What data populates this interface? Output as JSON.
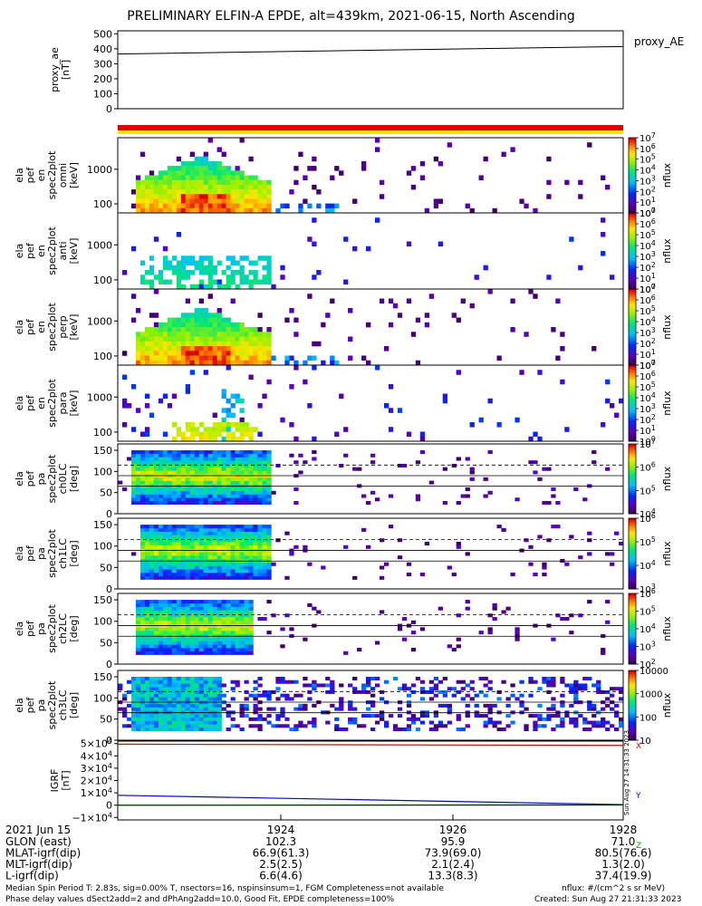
{
  "title": "PRELIMINARY ELFIN-A EPDE, alt=439km, 2021-06-15, North Ascending",
  "colors": {
    "red_bar": "#e00000",
    "yellow_bar": "#ffe000",
    "bx": "#e00000",
    "by": "#00a000",
    "bz": "#0000e0"
  },
  "chart_data": [
    {
      "type": "line",
      "panel": "proxy_ae",
      "ylabel": [
        "proxy_ae",
        "[nT]"
      ],
      "legend": "proxy_AE",
      "yticks": [
        "500",
        "400",
        "300",
        "200",
        "100",
        "0"
      ],
      "ylim": [
        0,
        520
      ],
      "series": [
        {
          "x": [
            0,
            1
          ],
          "values": [
            365,
            415
          ]
        }
      ]
    },
    {
      "type": "heatmap",
      "panel": "en-omni",
      "ylabel": [
        "ela",
        "pef",
        "en",
        "spec2plot",
        "omni",
        "[keV]"
      ],
      "yticks": [
        "1000",
        "100"
      ],
      "colorbar": {
        "label": "nflux",
        "ticks": [
          "10^7",
          "10^6",
          "10^5",
          "10^4",
          "10^3",
          "10^2",
          "10^1",
          "10^0"
        ]
      }
    },
    {
      "type": "heatmap",
      "panel": "en-anti",
      "ylabel": [
        "ela",
        "pef",
        "en",
        "spec2plot",
        "anti",
        "[keV]"
      ],
      "yticks": [
        "1000",
        "100"
      ],
      "colorbar": {
        "label": "nflux",
        "ticks": [
          "10^7",
          "10^6",
          "10^5",
          "10^4",
          "10^3",
          "10^2",
          "10^1",
          "10^0"
        ]
      }
    },
    {
      "type": "heatmap",
      "panel": "en-perp",
      "ylabel": [
        "ela",
        "pef",
        "en",
        "spec2plot",
        "perp",
        "[keV]"
      ],
      "yticks": [
        "1000",
        "100"
      ],
      "colorbar": {
        "label": "nflux",
        "ticks": [
          "10^7",
          "10^6",
          "10^5",
          "10^4",
          "10^3",
          "10^2",
          "10^1",
          "10^0"
        ]
      }
    },
    {
      "type": "heatmap",
      "panel": "en-para",
      "ylabel": [
        "ela",
        "pef",
        "en",
        "spec2plot",
        "para",
        "[keV]"
      ],
      "yticks": [
        "1000",
        "100"
      ],
      "colorbar": {
        "label": "nflux",
        "ticks": [
          "10^7",
          "10^6",
          "10^5",
          "10^4",
          "10^3",
          "10^2",
          "10^1",
          "10^0"
        ]
      }
    },
    {
      "type": "heatmap",
      "panel": "pa-ch0",
      "ylabel": [
        "ela",
        "pef",
        "pa",
        "spec2plot",
        "ch0LC",
        "[deg]"
      ],
      "yticks": [
        "150",
        "100",
        "50",
        "0"
      ],
      "colorbar": {
        "label": "nflux",
        "ticks": [
          "10^7",
          "10^6",
          "10^5",
          "10^4"
        ]
      }
    },
    {
      "type": "heatmap",
      "panel": "pa-ch1",
      "ylabel": [
        "ela",
        "pef",
        "pa",
        "spec2plot",
        "ch1LC",
        "[deg]"
      ],
      "yticks": [
        "150",
        "100",
        "50",
        "0"
      ],
      "colorbar": {
        "label": "nflux",
        "ticks": [
          "10^6",
          "10^5",
          "10^4",
          "10^3"
        ]
      }
    },
    {
      "type": "heatmap",
      "panel": "pa-ch2",
      "ylabel": [
        "ela",
        "pef",
        "pa",
        "spec2plot",
        "ch2LC",
        "[deg]"
      ],
      "yticks": [
        "150",
        "100",
        "50",
        "0"
      ],
      "colorbar": {
        "label": "nflux",
        "ticks": [
          "10^6",
          "10^5",
          "10^4",
          "10^3",
          "10^2"
        ]
      }
    },
    {
      "type": "heatmap",
      "panel": "pa-ch3",
      "ylabel": [
        "ela",
        "pef",
        "pa",
        "spec2plot",
        "ch3LC",
        "[deg]"
      ],
      "yticks": [
        "150",
        "100",
        "50",
        "0"
      ],
      "colorbar": {
        "label": "nflux",
        "ticks": [
          "10000",
          "1000",
          "100",
          "10"
        ]
      }
    },
    {
      "type": "line",
      "panel": "igrf",
      "ylabel": [
        "IGRF",
        "[nT]"
      ],
      "yticks": [
        "5×10^4",
        "4×10^4",
        "3×10^4",
        "2×10^4",
        "1×10^4",
        "0",
        "−1×10^4"
      ],
      "ylim": [
        -12000,
        52000
      ],
      "side_labels": [
        "X",
        "Y",
        "Z"
      ],
      "series": [
        {
          "x": [
            0,
            1
          ],
          "values": [
            49500,
            48500
          ]
        },
        {
          "x": [
            0,
            1
          ],
          "values": [
            8000,
            500
          ]
        },
        {
          "x": [
            0,
            1
          ],
          "values": [
            -200,
            300
          ]
        }
      ]
    }
  ],
  "xaxis": {
    "date": "2021 Jun 15",
    "ticks": [
      "1924",
      "1926",
      "1928"
    ],
    "rows": [
      {
        "label": "GLON (east)",
        "values": [
          "102.3",
          "95.9",
          "71.0"
        ]
      },
      {
        "label": "MLAT-igrf(dip)",
        "values": [
          "66.9(61.3)",
          "73.9(69.0)",
          "80.5(76.6)"
        ]
      },
      {
        "label": "MLT-igrf(dip)",
        "values": [
          "2.5(2.5)",
          "2.1(2.4)",
          "1.3(2.0)"
        ]
      },
      {
        "label": "L-igrf(dip)",
        "values": [
          "6.6(4.6)",
          "13.3(8.3)",
          "37.4(19.9)"
        ]
      }
    ]
  },
  "footer": {
    "line1": "Median Spin Period T: 2.83s, sig=0.00% T, nsectors=16, nspinsinsum=1, FGM Completeness=not available",
    "line2": "Phase delay values dSect2add=2 and dPhAng2add=10.0, Good Fit, EPDE completeness=100%",
    "units": "nflux: #/(cm^2 s sr MeV)",
    "created": "Created: Sun Aug 27 21:31:33 2023",
    "side_stamp": "Sun Aug 27 14:31:33 2023"
  }
}
